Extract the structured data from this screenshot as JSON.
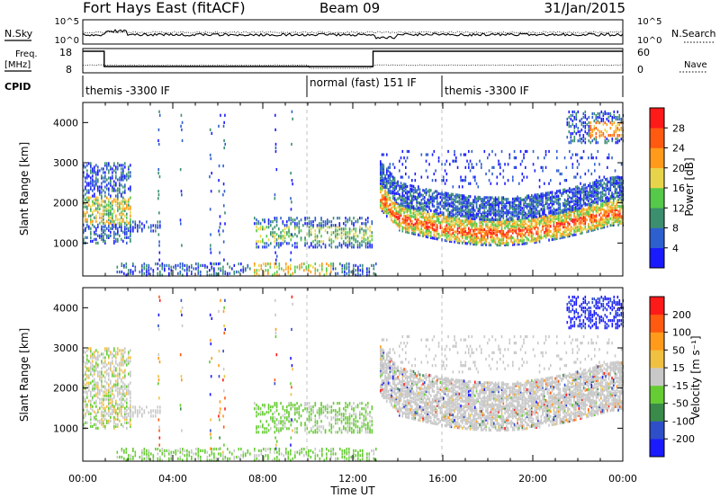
{
  "header": {
    "station": "Fort Hays East (fitACF)",
    "beam": "Beam 09",
    "date": "31/Jan/2015"
  },
  "params_panel": {
    "nsky_label": "N.Sky",
    "nsearch_label": "N.Search",
    "freq_label": "Freq.",
    "freq_unit": "[MHz]",
    "nave_label": "Nave",
    "cpid_label": "CPID",
    "noise_left_ticks": [
      "10^5",
      "10^0"
    ],
    "noise_right_ticks": [
      "10^5",
      "10^0"
    ],
    "freq_left_ticks": [
      "18",
      "8"
    ],
    "nave_right_ticks": [
      "60",
      "0"
    ]
  },
  "cpid_segments": [
    {
      "label": "themis -3300 IF",
      "start_hour": 0,
      "end_hour": 10.0
    },
    {
      "label": "normal (fast) 151 IF",
      "start_hour": 10.0,
      "end_hour": 16.0
    },
    {
      "label": "themis -3300 IF",
      "start_hour": 16.0,
      "end_hour": 24
    }
  ],
  "chart_data": [
    {
      "type": "heatmap",
      "quantity": "Power",
      "ylabel": "Slant Range [km]",
      "xlim_hours": [
        0,
        24
      ],
      "ylim_km": [
        180,
        4500
      ],
      "yticks": [
        1000,
        2000,
        3000,
        4000
      ],
      "colorbar": {
        "label": "Power [dB]",
        "ticks": [
          "4",
          "8",
          "12",
          "16",
          "20",
          "24",
          "28"
        ],
        "colors": [
          "#1a1aff",
          "#2e5fcf",
          "#3c8f6e",
          "#55c94a",
          "#e8d44a",
          "#ff9a1a",
          "#ff5a10",
          "#ff1a1a"
        ]
      }
    },
    {
      "type": "heatmap",
      "quantity": "Velocity",
      "ylabel": "Slant Range [km]",
      "xlabel": "Time UT",
      "xlim_hours": [
        0,
        24
      ],
      "ylim_km": [
        180,
        4500
      ],
      "yticks": [
        1000,
        2000,
        3000,
        4000
      ],
      "xticks": [
        "00:00",
        "04:00",
        "08:00",
        "12:00",
        "16:00",
        "20:00",
        "00:00"
      ],
      "colorbar": {
        "label": "Velocity [m s⁻¹]",
        "ticks": [
          "200",
          "100",
          "50",
          "15",
          "-15",
          "-50",
          "-100",
          "-200"
        ],
        "colors": [
          "#1a1aff",
          "#2f4fc8",
          "#3a8a4a",
          "#66cc33",
          "#c8c8c8",
          "#f0c040",
          "#ff9a1a",
          "#ff5a10",
          "#ff1a1a"
        ]
      }
    }
  ]
}
